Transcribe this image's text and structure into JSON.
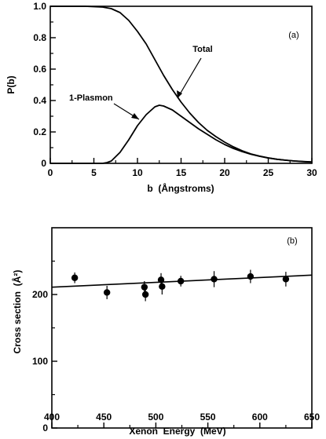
{
  "chart_data": [
    {
      "type": "line",
      "panel_label": "(a)",
      "xlabel": "b  (Ångstroms)",
      "ylabel": "P(b)",
      "xlim": [
        0,
        30
      ],
      "ylim": [
        0,
        1.0
      ],
      "x_ticks": [
        "0",
        "5",
        "10",
        "15",
        "20",
        "25",
        "30"
      ],
      "y_ticks": [
        "0",
        "0.2",
        "0.4",
        "0.6",
        "0.8",
        "1.0"
      ],
      "series": [
        {
          "name": "Total",
          "x": [
            0,
            2,
            4,
            6,
            7,
            8,
            9,
            10,
            11,
            12,
            13,
            14,
            15,
            16,
            17,
            18,
            19,
            20,
            21,
            22,
            23,
            24,
            25,
            26,
            27,
            28,
            29,
            30
          ],
          "y": [
            1.0,
            1.0,
            1.0,
            0.995,
            0.985,
            0.96,
            0.91,
            0.84,
            0.76,
            0.66,
            0.56,
            0.47,
            0.39,
            0.32,
            0.26,
            0.21,
            0.17,
            0.135,
            0.105,
            0.08,
            0.06,
            0.046,
            0.035,
            0.026,
            0.02,
            0.015,
            0.012,
            0.009
          ]
        },
        {
          "name": "1-Plasmon",
          "x": [
            6,
            6.5,
            7,
            8,
            9,
            10,
            11,
            12,
            12.5,
            13,
            14,
            15,
            16,
            17,
            18,
            19,
            20,
            21,
            22,
            23,
            24,
            25,
            26,
            27,
            28,
            29,
            30
          ],
          "y": [
            0.0,
            0.005,
            0.015,
            0.07,
            0.15,
            0.24,
            0.31,
            0.36,
            0.37,
            0.365,
            0.34,
            0.3,
            0.26,
            0.22,
            0.185,
            0.15,
            0.12,
            0.095,
            0.075,
            0.058,
            0.045,
            0.034,
            0.026,
            0.02,
            0.015,
            0.011,
            0.008
          ]
        }
      ],
      "annotations": [
        "Total",
        "1-Plasmon"
      ]
    },
    {
      "type": "scatter",
      "panel_label": "(b)",
      "xlabel": "Xenon  Energy  (MeV)",
      "ylabel": "Cross section  (Å²)",
      "xlim": [
        400,
        650
      ],
      "ylim": [
        0,
        300
      ],
      "x_ticks": [
        "400",
        "450",
        "500",
        "550",
        "600",
        "650"
      ],
      "y_ticks": [
        "0",
        "100",
        "200"
      ],
      "points": [
        {
          "x": 422,
          "y": 225,
          "err": 8
        },
        {
          "x": 453,
          "y": 203,
          "err": 10
        },
        {
          "x": 489,
          "y": 211,
          "err": 9
        },
        {
          "x": 490,
          "y": 200,
          "err": 10
        },
        {
          "x": 505,
          "y": 222,
          "err": 10
        },
        {
          "x": 506,
          "y": 212,
          "err": 12
        },
        {
          "x": 524,
          "y": 220,
          "err": 8
        },
        {
          "x": 556,
          "y": 223,
          "err": 12
        },
        {
          "x": 591,
          "y": 227,
          "err": 10
        },
        {
          "x": 625,
          "y": 223,
          "err": 11
        }
      ],
      "fit_line": {
        "x": [
          400,
          650
        ],
        "y": [
          211,
          229
        ]
      }
    }
  ]
}
